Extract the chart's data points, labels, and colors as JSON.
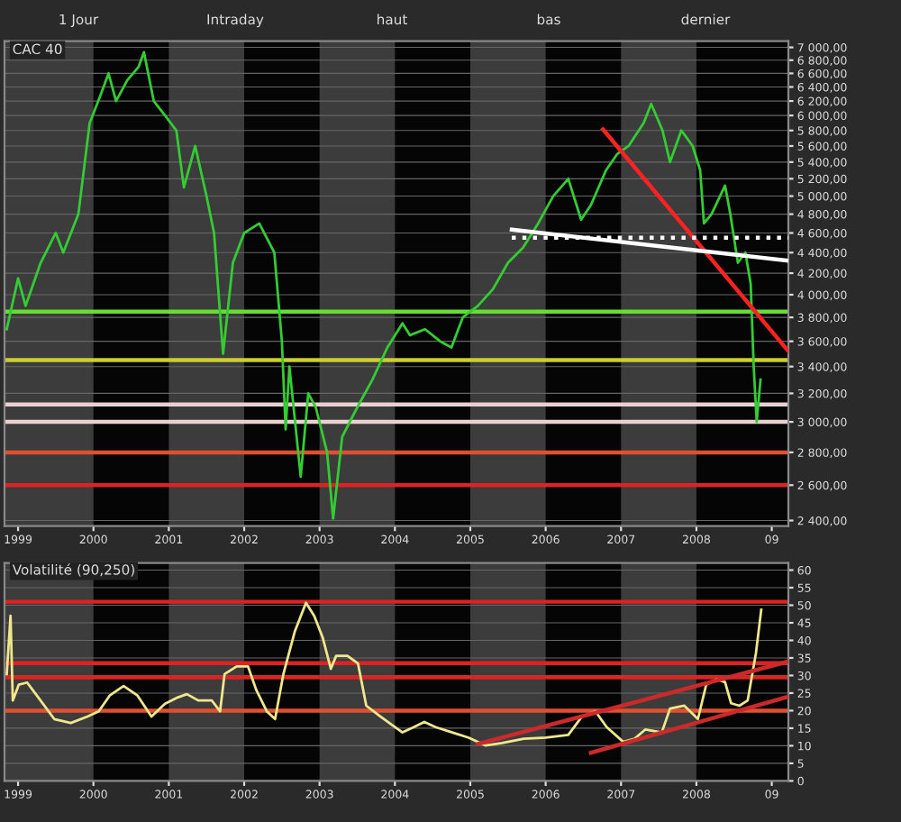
{
  "chart_data": [
    {
      "type": "line",
      "title": "CAC 40",
      "annotations": [
        "1 Jour",
        "Intraday",
        "haut",
        "bas",
        "dernier"
      ],
      "log": true,
      "ylim": [
        2370,
        7100
      ],
      "xlim": [
        1998.82,
        2009.22
      ],
      "xticks": [
        {
          "value": 1999,
          "label": "1999"
        },
        {
          "value": 2000,
          "label": "2000"
        },
        {
          "value": 2001,
          "label": "2001"
        },
        {
          "value": 2002,
          "label": "2002"
        },
        {
          "value": 2003,
          "label": "2003"
        },
        {
          "value": 2004,
          "label": "2004"
        },
        {
          "value": 2005,
          "label": "2005"
        },
        {
          "value": 2006,
          "label": "2006"
        },
        {
          "value": 2007,
          "label": "2007"
        },
        {
          "value": 2008,
          "label": "2008"
        },
        {
          "value": 2009,
          "label": "09"
        }
      ],
      "yticks": [
        {
          "value": 2400,
          "label": "2 400,00"
        },
        {
          "value": 2600,
          "label": "2 600,00"
        },
        {
          "value": 2800,
          "label": "2 800,00"
        },
        {
          "value": 3000,
          "label": "3 000,00"
        },
        {
          "value": 3200,
          "label": "3 200,00"
        },
        {
          "value": 3400,
          "label": "3 400,00"
        },
        {
          "value": 3600,
          "label": "3 600,00"
        },
        {
          "value": 3800,
          "label": "3 800,00"
        },
        {
          "value": 4000,
          "label": "4 000,00"
        },
        {
          "value": 4200,
          "label": "4 200,00"
        },
        {
          "value": 4400,
          "label": "4 400,00"
        },
        {
          "value": 4600,
          "label": "4 600,00"
        },
        {
          "value": 4800,
          "label": "4 800,00"
        },
        {
          "value": 5000,
          "label": "5 000,00"
        },
        {
          "value": 5200,
          "label": "5 200,00"
        },
        {
          "value": 5400,
          "label": "5 400,00"
        },
        {
          "value": 5600,
          "label": "5 600,00"
        },
        {
          "value": 5800,
          "label": "5 800,00"
        },
        {
          "value": 6000,
          "label": "6 000,00"
        },
        {
          "value": 6200,
          "label": "6 200,00"
        },
        {
          "value": 6400,
          "label": "6 400,00"
        },
        {
          "value": 6600,
          "label": "6 600,00"
        },
        {
          "value": 6800,
          "label": "6 800,00"
        },
        {
          "value": 7000,
          "label": "7 000,00"
        }
      ],
      "grid": "y",
      "series": [
        {
          "color": "#33cc33",
          "x": [
            1998.85,
            1999.0,
            1999.1,
            1999.3,
            1999.5,
            1999.6,
            1999.8,
            1999.95,
            2000.1,
            2000.2,
            2000.3,
            2000.45,
            2000.6,
            2000.67,
            2000.8,
            2000.95,
            2001.1,
            2001.2,
            2001.35,
            2001.5,
            2001.6,
            2001.72,
            2001.85,
            2002.0,
            2002.2,
            2002.4,
            2002.5,
            2002.55,
            2002.6,
            2002.75,
            2002.85,
            2002.95,
            2003.1,
            2003.18,
            2003.3,
            2003.5,
            2003.7,
            2003.9,
            2004.1,
            2004.2,
            2004.4,
            2004.6,
            2004.75,
            2004.9,
            2005.1,
            2005.3,
            2005.5,
            2005.7,
            2005.9,
            2006.1,
            2006.3,
            2006.47,
            2006.6,
            2006.8,
            2006.95,
            2007.1,
            2007.3,
            2007.4,
            2007.55,
            2007.65,
            2007.8,
            2007.95,
            2008.05,
            2008.1,
            2008.2,
            2008.38,
            2008.45,
            2008.55,
            2008.65,
            2008.72,
            2008.76,
            2008.8,
            2008.85
          ],
          "values": [
            3700,
            4150,
            3900,
            4300,
            4600,
            4400,
            4800,
            5900,
            6300,
            6600,
            6200,
            6500,
            6700,
            6925,
            6200,
            6000,
            5800,
            5100,
            5600,
            5000,
            4600,
            3500,
            4300,
            4600,
            4700,
            4400,
            3600,
            2950,
            3400,
            2650,
            3200,
            3100,
            2800,
            2410,
            2900,
            3100,
            3300,
            3550,
            3750,
            3650,
            3700,
            3600,
            3550,
            3800,
            3900,
            4050,
            4300,
            4450,
            4700,
            5000,
            5200,
            4740,
            4900,
            5300,
            5500,
            5600,
            5900,
            6160,
            5800,
            5400,
            5800,
            5600,
            5300,
            4700,
            4800,
            5120,
            4800,
            4300,
            4400,
            4100,
            3400,
            3000,
            3300
          ]
        },
        {
          "color": "#ff2222",
          "x": [
            2006.76,
            2009.22
          ],
          "values": [
            5815,
            3520
          ]
        },
        {
          "color": "#ffffff",
          "x": [
            2005.55,
            2009.22
          ],
          "values": [
            4635,
            4320
          ]
        },
        {
          "color": "#ffffff",
          "x": [
            2005.55,
            2009.22
          ],
          "values": [
            4550,
            4550
          ],
          "line_style": "dotted"
        }
      ],
      "ref_lines": [
        {
          "axis": "y",
          "value": 3850,
          "color": "#66dd33"
        },
        {
          "axis": "y",
          "value": 3450,
          "color": "#cccc33"
        },
        {
          "axis": "y",
          "value": 3120,
          "color": "#ead0d0"
        },
        {
          "axis": "y",
          "value": 3000,
          "color": "#ead0d0"
        },
        {
          "axis": "y",
          "value": 2800,
          "color": "#e05030"
        },
        {
          "axis": "y",
          "value": 2600,
          "color": "#dd2222"
        }
      ],
      "bands": [
        {
          "axis": "x",
          "from": 1998.82,
          "to": 2000,
          "color": "#3c3c3c"
        },
        {
          "axis": "x",
          "from": 2001,
          "to": 2002,
          "color": "#3c3c3c"
        },
        {
          "axis": "x",
          "from": 2003,
          "to": 2004,
          "color": "#3c3c3c"
        },
        {
          "axis": "x",
          "from": 2005,
          "to": 2006,
          "color": "#3c3c3c"
        },
        {
          "axis": "x",
          "from": 2007,
          "to": 2008,
          "color": "#3c3c3c"
        }
      ]
    },
    {
      "type": "line",
      "title": "Volatilité (90,250)",
      "ylim": [
        0,
        62
      ],
      "xlim": [
        1998.82,
        2009.22
      ],
      "xticks": [
        {
          "value": 1999,
          "label": "1999"
        },
        {
          "value": 2000,
          "label": "2000"
        },
        {
          "value": 2001,
          "label": "2001"
        },
        {
          "value": 2002,
          "label": "2002"
        },
        {
          "value": 2003,
          "label": "2003"
        },
        {
          "value": 2004,
          "label": "2004"
        },
        {
          "value": 2005,
          "label": "2005"
        },
        {
          "value": 2006,
          "label": "2006"
        },
        {
          "value": 2007,
          "label": "2007"
        },
        {
          "value": 2008,
          "label": "2008"
        },
        {
          "value": 2009,
          "label": "09"
        }
      ],
      "yticks": [
        0,
        5,
        10,
        15,
        20,
        25,
        30,
        35,
        40,
        45,
        50,
        55,
        60
      ],
      "grid": "y",
      "series": [
        {
          "color": "#f0e68c",
          "x": [
            1998.85,
            1998.9,
            1998.93,
            1999.01,
            1999.12,
            1999.26,
            1999.48,
            1999.7,
            1999.92,
            2000.07,
            2000.22,
            2000.4,
            2000.58,
            2000.77,
            2000.95,
            2001.1,
            2001.24,
            2001.39,
            2001.57,
            2001.68,
            2001.74,
            2001.9,
            2002.05,
            2002.16,
            2002.3,
            2002.41,
            2002.52,
            2002.67,
            2002.82,
            2002.93,
            2003.04,
            2003.15,
            2003.22,
            2003.37,
            2003.51,
            2003.62,
            2003.81,
            2003.95,
            2004.1,
            2004.25,
            2004.39,
            2004.54,
            2004.76,
            2004.98,
            2005.2,
            2005.42,
            2005.71,
            2006.0,
            2006.3,
            2006.48,
            2006.66,
            2006.81,
            2007.03,
            2007.18,
            2007.32,
            2007.54,
            2007.65,
            2007.84,
            2008.02,
            2008.13,
            2008.27,
            2008.38,
            2008.46,
            2008.57,
            2008.68,
            2008.79,
            2008.86
          ],
          "values": [
            30.4,
            47,
            22.9,
            27.4,
            28,
            24,
            17.6,
            16.5,
            18.3,
            19.8,
            24.4,
            27,
            24.4,
            18.3,
            22,
            23.6,
            24.7,
            22.9,
            22.9,
            19.8,
            30.4,
            32.6,
            32.6,
            25.9,
            19.8,
            17.6,
            30.4,
            42.4,
            50.7,
            46.9,
            40.9,
            31.9,
            35.6,
            35.6,
            33.4,
            21.4,
            18.3,
            16.1,
            13.8,
            15.3,
            16.8,
            15.3,
            13.8,
            12.3,
            10.1,
            10.8,
            12,
            12.3,
            13.1,
            18.3,
            19.8,
            15.3,
            11.1,
            12,
            14.6,
            13.8,
            20.6,
            21.4,
            17.6,
            27.4,
            28.9,
            28.1,
            22.1,
            21.4,
            22.9,
            36.4,
            48.7
          ]
        },
        {
          "color": "#cc2a2a",
          "x": [
            2005.1,
            2009.22
          ],
          "values": [
            10.5,
            34
          ]
        },
        {
          "color": "#cc2a2a",
          "x": [
            2006.6,
            2009.22
          ],
          "values": [
            8,
            24
          ]
        }
      ],
      "ref_lines": [
        {
          "axis": "y",
          "value": 51,
          "color": "#dd2222"
        },
        {
          "axis": "y",
          "value": 33.5,
          "color": "#dd2222"
        },
        {
          "axis": "y",
          "value": 29.5,
          "color": "#dd2222"
        },
        {
          "axis": "y",
          "value": 20,
          "color": "#e05030"
        }
      ],
      "bands": [
        {
          "axis": "x",
          "from": 1998.82,
          "to": 2000,
          "color": "#3c3c3c"
        },
        {
          "axis": "x",
          "from": 2001,
          "to": 2002,
          "color": "#3c3c3c"
        },
        {
          "axis": "x",
          "from": 2003,
          "to": 2004,
          "color": "#3c3c3c"
        },
        {
          "axis": "x",
          "from": 2005,
          "to": 2006,
          "color": "#3c3c3c"
        },
        {
          "axis": "x",
          "from": 2007,
          "to": 2008,
          "color": "#3c3c3c"
        }
      ]
    }
  ]
}
